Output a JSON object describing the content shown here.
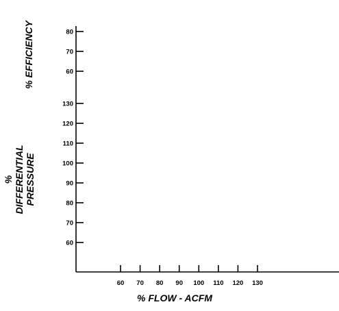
{
  "chart_data": {
    "type": "line",
    "axes": [
      {
        "id": "efficiency",
        "ylabel": "% EFFICIENCY",
        "ticks": [
          80,
          70,
          60
        ],
        "ylim": [
          60,
          80
        ]
      },
      {
        "id": "pressure",
        "ylabel_lines": [
          "%",
          "DIFFERENTIAL",
          "PRESSURE"
        ],
        "ticks": [
          130,
          120,
          110,
          100,
          90,
          80,
          70,
          60
        ],
        "ylim": [
          60,
          130
        ]
      }
    ],
    "x": {
      "xlabel": "% FLOW - ACFM",
      "ticks": [
        60,
        70,
        80,
        90,
        100,
        110,
        120,
        130
      ],
      "xlim": [
        60,
        130
      ]
    },
    "series": [],
    "grid": false
  }
}
